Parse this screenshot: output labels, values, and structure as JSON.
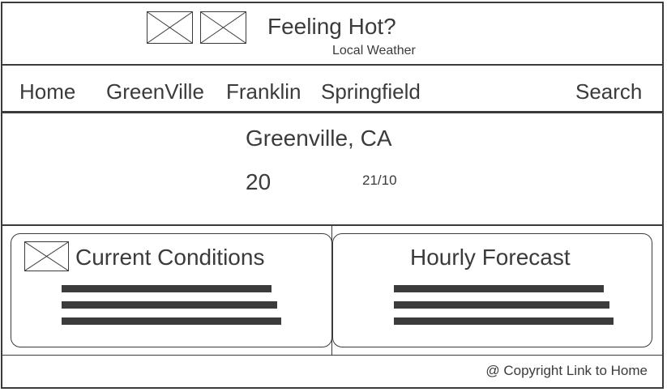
{
  "header": {
    "title": "Feeling Hot?",
    "subtitle": "Local Weather",
    "logo_icons": [
      "image-placeholder-icon",
      "image-placeholder-icon"
    ]
  },
  "nav": {
    "items": [
      {
        "label": "Home"
      },
      {
        "label": "GreenVille"
      },
      {
        "label": "Franklin"
      },
      {
        "label": "Springfield"
      }
    ],
    "search_label": "Search"
  },
  "location": {
    "city": "Greenville, CA",
    "temperature": "20",
    "date": "21/10"
  },
  "cards": {
    "current": {
      "title": "Current Conditions",
      "icon": "image-placeholder-icon"
    },
    "hourly": {
      "title": "Hourly Forecast"
    }
  },
  "footer": {
    "link_text": "@ Copyright Link to Home"
  },
  "colors": {
    "stroke": "#3b3b3b",
    "background": "#ffffff"
  }
}
